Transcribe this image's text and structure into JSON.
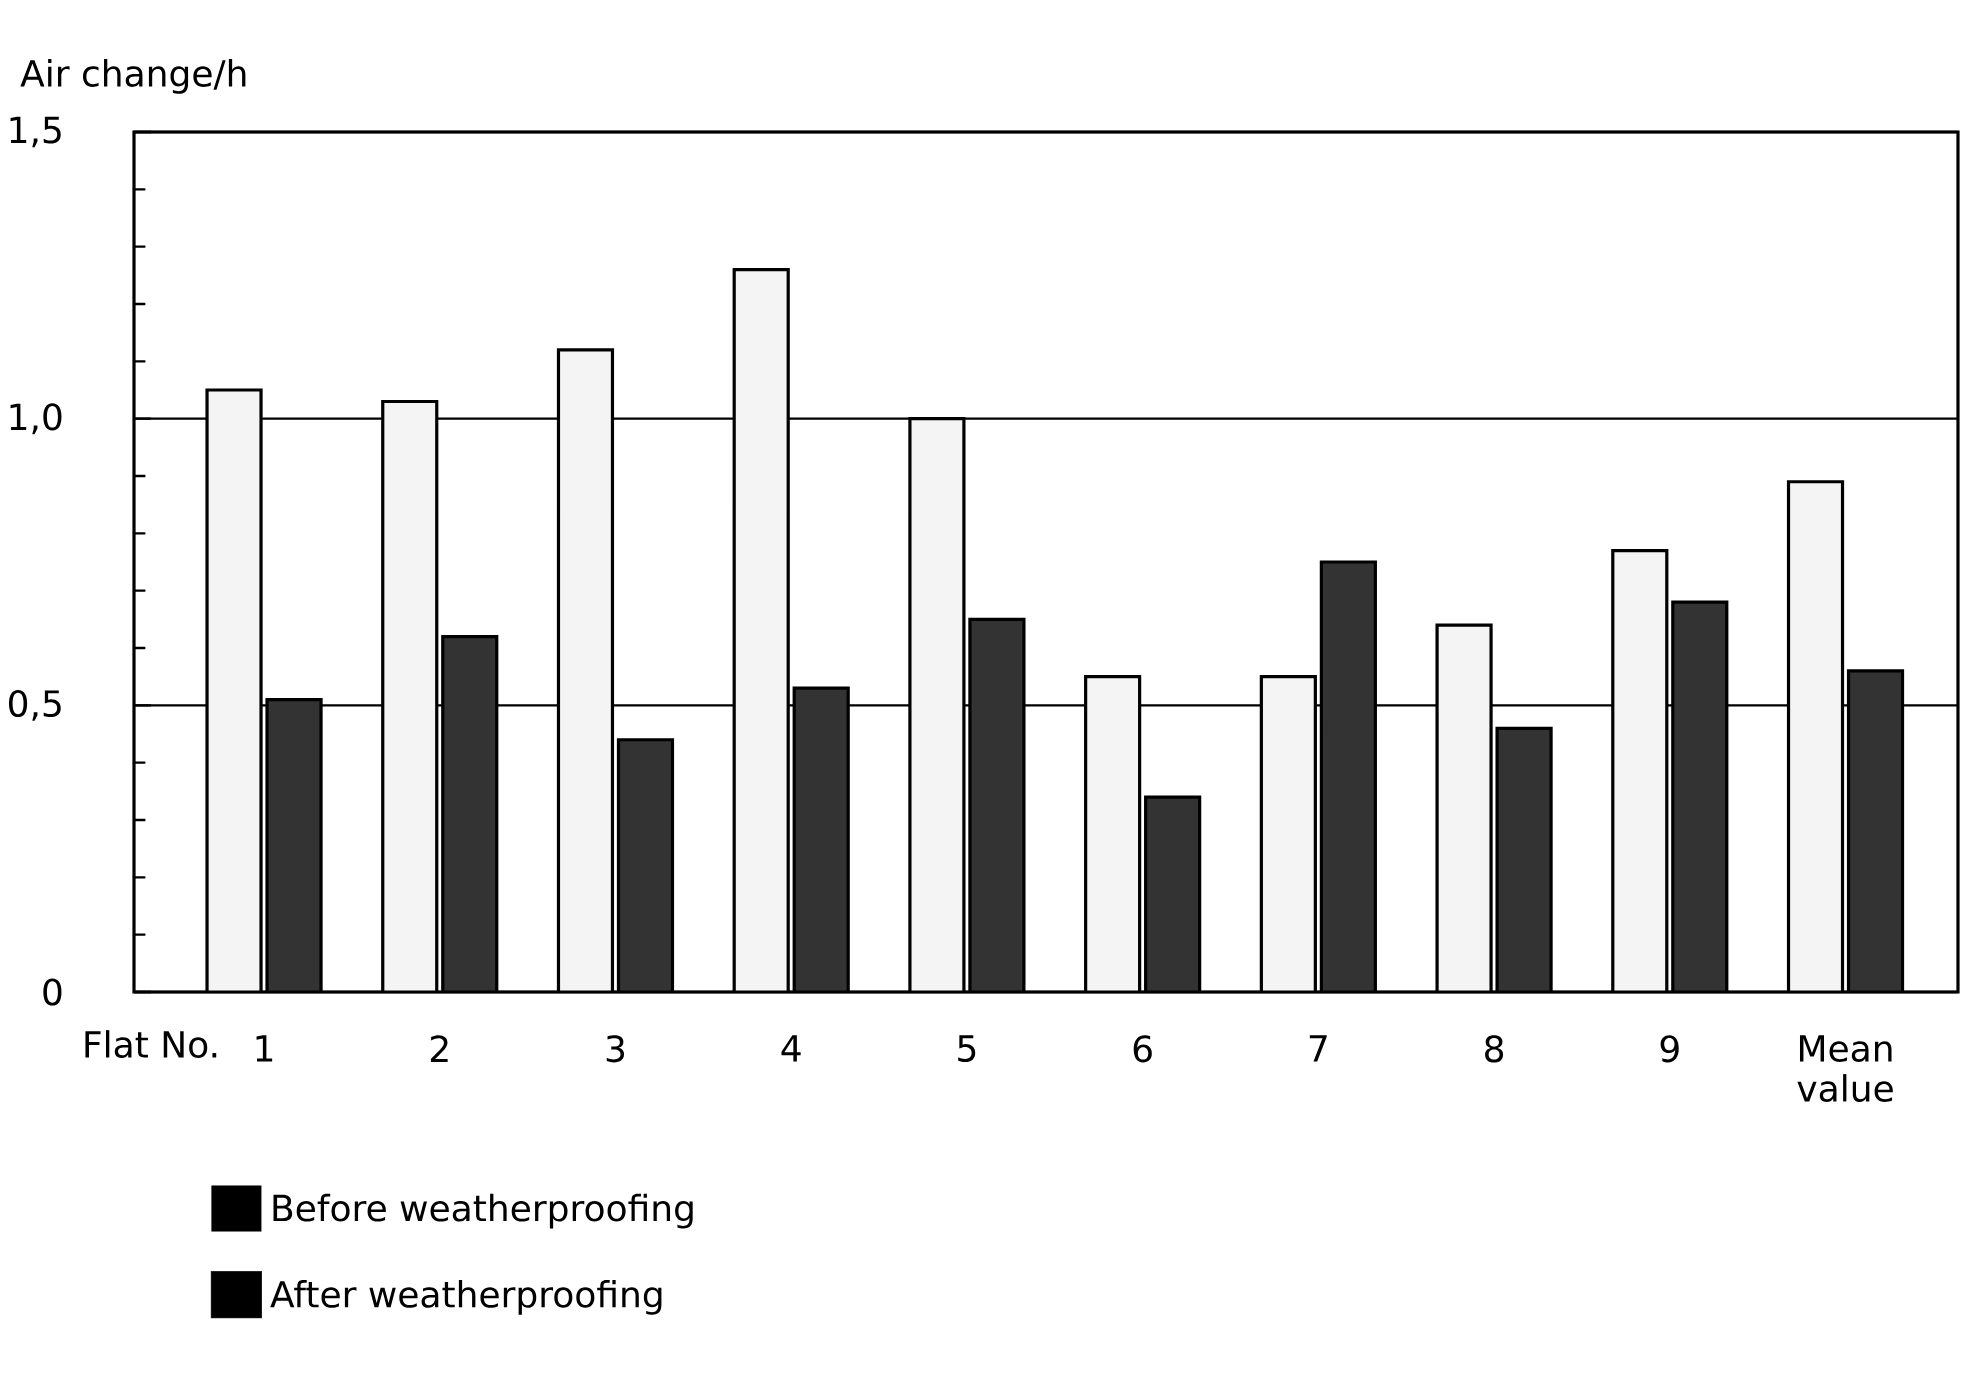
{
  "chart_data": {
    "type": "bar",
    "ylabel": "Air change/h",
    "xlabel": "Flat No.",
    "categories": [
      "1",
      "2",
      "3",
      "4",
      "5",
      "6",
      "7",
      "8",
      "9",
      "Mean value"
    ],
    "series": [
      {
        "name": "Before weatherproofing",
        "color": "#f4f4f4",
        "values": [
          1.05,
          1.03,
          1.12,
          1.26,
          1.0,
          0.55,
          0.55,
          0.64,
          0.77,
          0.89
        ]
      },
      {
        "name": "After weatherproofing",
        "color": "#333333",
        "values": [
          0.51,
          0.62,
          0.44,
          0.53,
          0.65,
          0.34,
          0.75,
          0.46,
          0.68,
          0.56
        ]
      }
    ],
    "ylim": [
      0,
      1.5
    ],
    "yticks": [
      0,
      {
        "value": 0.5,
        "label": "0,5"
      },
      {
        "value": 1.0,
        "label": "1,0"
      },
      {
        "value": 1.5,
        "label": "1,5"
      }
    ],
    "grid": "y",
    "legend": "bottom"
  }
}
